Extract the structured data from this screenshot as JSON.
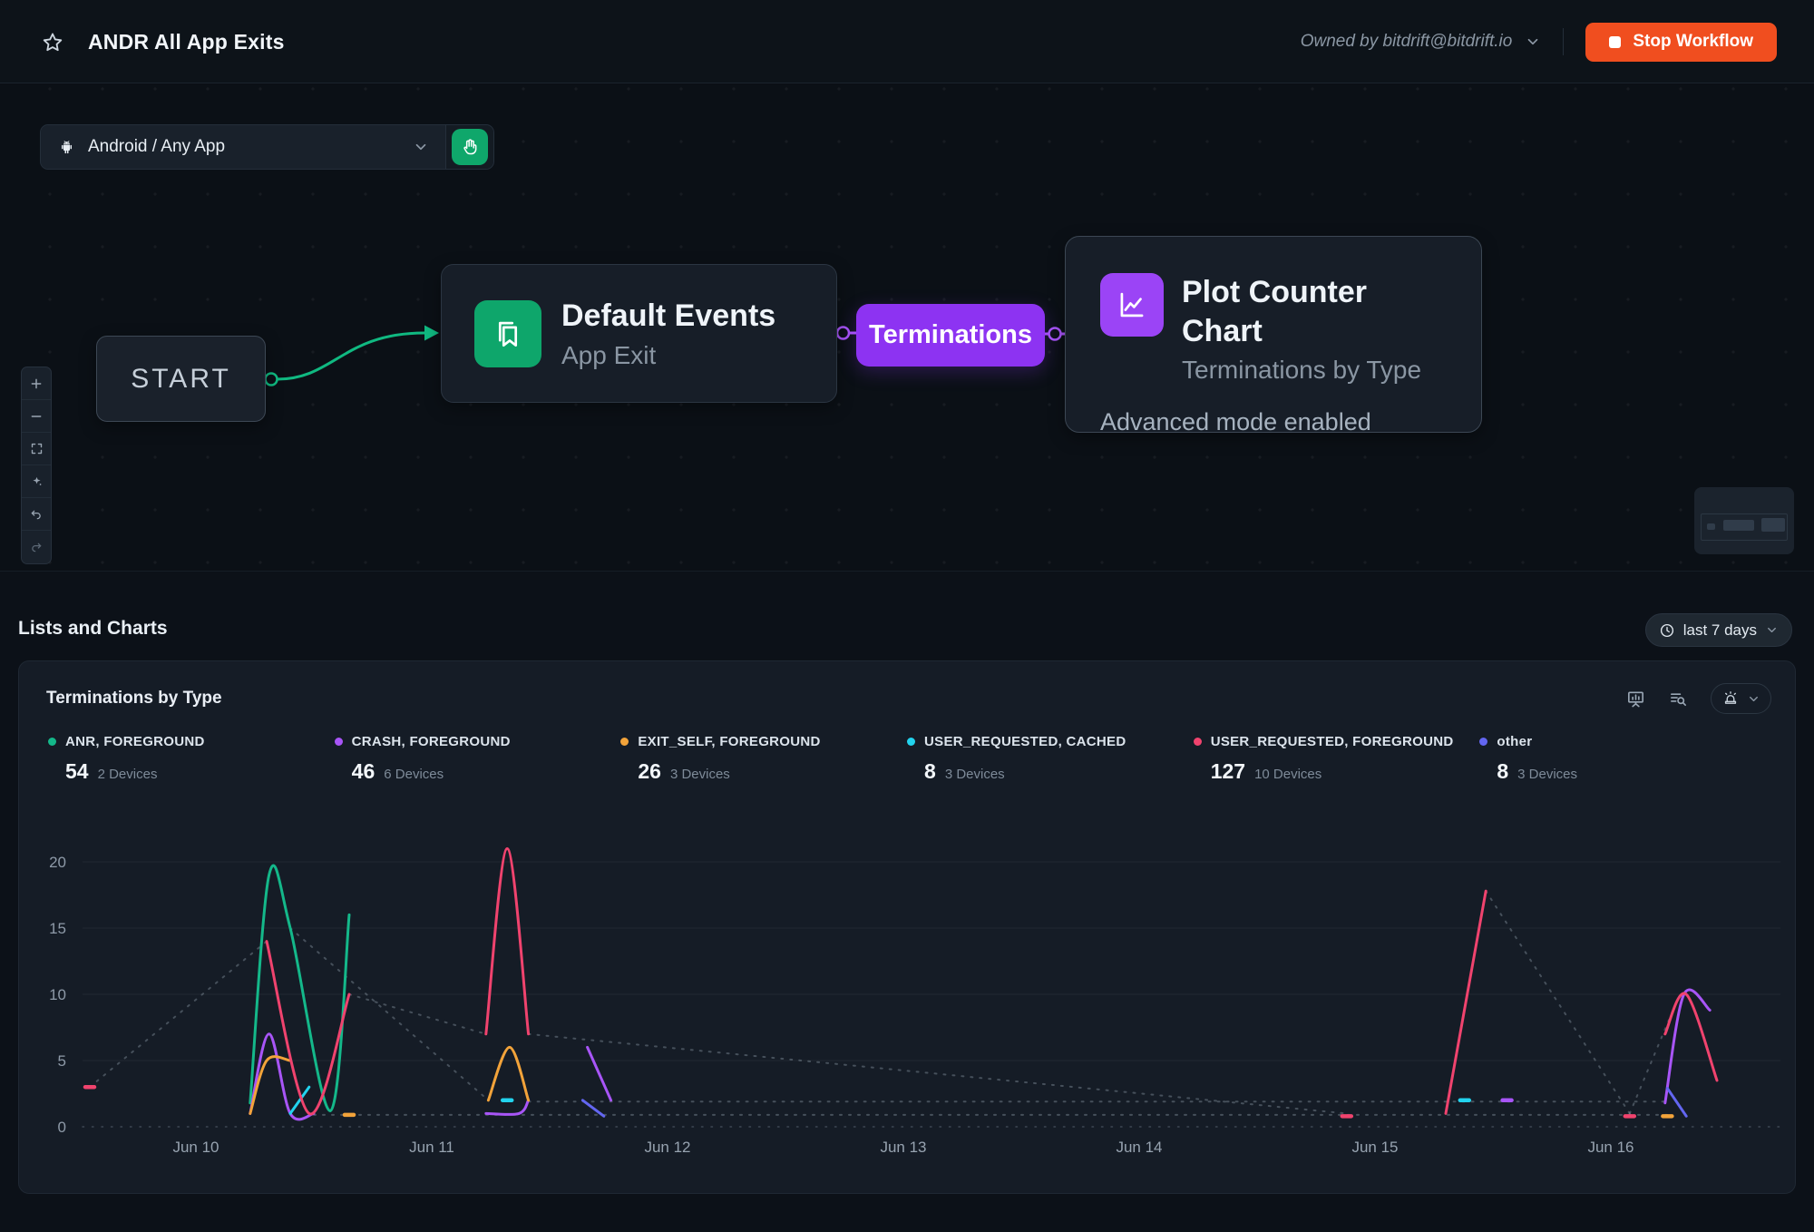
{
  "header": {
    "title": "ANDR All App Exits",
    "owner": "Owned by bitdrift@bitdrift.io",
    "stop_button": "Stop Workflow"
  },
  "colors": {
    "stop_button": "#f04e1f",
    "workflow_green": "#10b981",
    "workflow_purple": "#a855f7",
    "terminations_pill": "#8d33f2"
  },
  "canvas": {
    "app_selector": {
      "label": "Android / Any App"
    },
    "nodes": {
      "start": {
        "label": "START"
      },
      "default_events": {
        "title": "Default Events",
        "subtitle": "App Exit"
      },
      "terminations": {
        "label": "Terminations"
      },
      "plot_counter": {
        "title": "Plot Counter Chart",
        "subtitle": "Terminations by Type",
        "footer": "Advanced mode enabled"
      }
    }
  },
  "lists_section": {
    "title": "Lists and Charts",
    "time_range": "last 7 days"
  },
  "chart_card": {
    "title": "Terminations by Type",
    "legend": [
      {
        "label": "ANR, FOREGROUND",
        "value": "54",
        "devices": "2 Devices",
        "color": "#14b88a"
      },
      {
        "label": "CRASH, FOREGROUND",
        "value": "46",
        "devices": "6 Devices",
        "color": "#a855f7"
      },
      {
        "label": "EXIT_SELF, FOREGROUND",
        "value": "26",
        "devices": "3 Devices",
        "color": "#f2a33a"
      },
      {
        "label": "USER_REQUESTED, CACHED",
        "value": "8",
        "devices": "3 Devices",
        "color": "#22d3ee"
      },
      {
        "label": "USER_REQUESTED, FOREGROUND",
        "value": "127",
        "devices": "10 Devices",
        "color": "#f0436e"
      },
      {
        "label": "other",
        "value": "8",
        "devices": "3 Devices",
        "color": "#6366f1"
      }
    ]
  },
  "chart_data": {
    "type": "line",
    "title": "Terminations by Type",
    "x_ticks": [
      "Jun 10",
      "Jun 11",
      "Jun 12",
      "Jun 13",
      "Jun 14",
      "Jun 15",
      "Jun 16"
    ],
    "y_ticks": [
      0,
      5,
      10,
      15,
      20
    ],
    "ylim": [
      0,
      22
    ],
    "x_unit": "day index, 0 = Jun 10",
    "grid": "horizontal",
    "legend_position": "top",
    "series": [
      {
        "name": "ANR, FOREGROUND",
        "color": "#14b88a",
        "segments": [
          [
            [
              0.23,
              1.8
            ],
            [
              0.31,
              19
            ],
            [
              0.4,
              15
            ],
            [
              0.57,
              1.2
            ],
            [
              0.65,
              16
            ]
          ]
        ],
        "dashes": []
      },
      {
        "name": "CRASH, FOREGROUND",
        "color": "#a855f7",
        "segments": [
          [
            [
              0.23,
              1
            ],
            [
              0.31,
              7
            ],
            [
              0.4,
              1
            ],
            [
              0.5,
              1
            ]
          ],
          [
            [
              1.23,
              1
            ],
            [
              1.37,
              1
            ],
            [
              1.41,
              2
            ]
          ],
          [
            [
              1.66,
              6
            ],
            [
              1.76,
              2
            ]
          ],
          [
            [
              6.23,
              1.8
            ],
            [
              6.31,
              10
            ],
            [
              6.42,
              8.8
            ]
          ]
        ],
        "dashes": [
          [
            5.56,
            2
          ]
        ]
      },
      {
        "name": "EXIT_SELF, FOREGROUND",
        "color": "#f2a33a",
        "segments": [
          [
            [
              0.23,
              1
            ],
            [
              0.3,
              5
            ],
            [
              0.4,
              5
            ]
          ],
          [
            [
              1.24,
              2
            ],
            [
              1.33,
              6
            ],
            [
              1.41,
              2
            ]
          ]
        ],
        "dashes": [
          [
            0.65,
            0.9
          ],
          [
            6.24,
            0.8
          ]
        ]
      },
      {
        "name": "USER_REQUESTED, CACHED",
        "color": "#22d3ee",
        "segments": [
          [
            [
              0.4,
              1
            ],
            [
              0.48,
              3
            ]
          ]
        ],
        "dashes": [
          [
            1.32,
            2
          ],
          [
            5.38,
            2
          ]
        ]
      },
      {
        "name": "USER_REQUESTED, FOREGROUND",
        "color": "#f0436e",
        "segments": [
          [
            [
              0.3,
              14
            ],
            [
              0.48,
              1
            ],
            [
              0.65,
              10
            ]
          ],
          [
            [
              1.23,
              7
            ],
            [
              1.32,
              21
            ],
            [
              1.41,
              7
            ]
          ],
          [
            [
              5.3,
              1
            ],
            [
              5.47,
              17.8
            ]
          ],
          [
            [
              6.23,
              7
            ],
            [
              6.32,
              10
            ],
            [
              6.45,
              3.5
            ]
          ]
        ],
        "dashes": [
          [
            -0.45,
            3
          ],
          [
            4.88,
            0.8
          ],
          [
            6.08,
            0.8
          ]
        ]
      },
      {
        "name": "other",
        "color": "#6366f1",
        "segments": [
          [
            [
              1.64,
              2
            ],
            [
              1.73,
              0.8
            ]
          ],
          [
            [
              6.24,
              2.9
            ],
            [
              6.32,
              0.8
            ]
          ]
        ],
        "dashes": []
      }
    ],
    "dotted_interpolation": [
      [
        [
          -0.45,
          3
        ],
        [
          0.3,
          14
        ]
      ],
      [
        [
          0.4,
          15
        ],
        [
          1.24,
          2
        ]
      ],
      [
        [
          0.65,
          10
        ],
        [
          1.23,
          7
        ]
      ],
      [
        [
          1.41,
          7
        ],
        [
          4.88,
          1
        ]
      ],
      [
        [
          5.47,
          17.8
        ],
        [
          6.08,
          1
        ]
      ],
      [
        [
          6.08,
          1
        ],
        [
          6.28,
          9.5
        ]
      ],
      [
        [
          0.5,
          0.9
        ],
        [
          6.24,
          0.9
        ]
      ],
      [
        [
          1.41,
          1.9
        ],
        [
          6.23,
          1.9
        ]
      ]
    ]
  }
}
